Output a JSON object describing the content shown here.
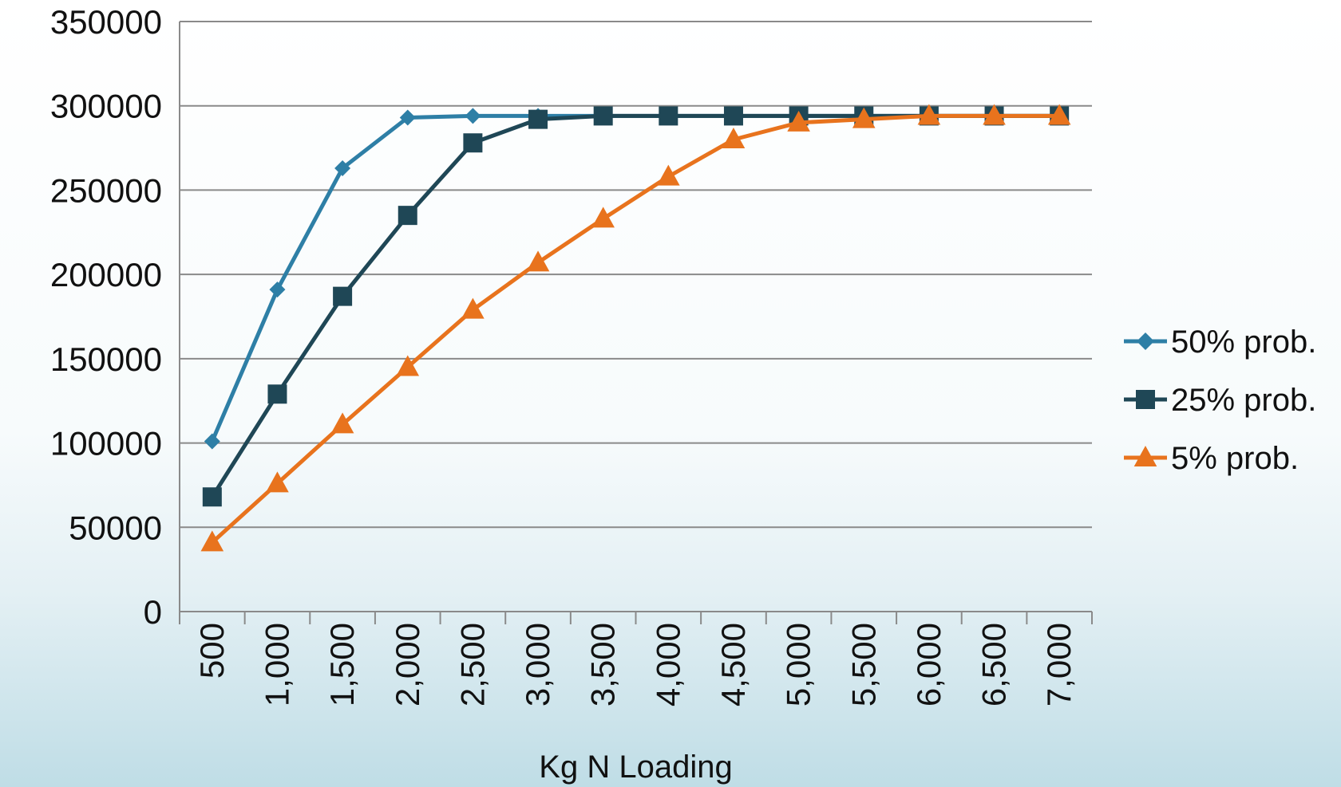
{
  "chart_data": {
    "type": "line",
    "title": "",
    "xlabel": "Kg N Loading",
    "ylabel": "",
    "categories": [
      "500",
      "1,000",
      "1,500",
      "2,000",
      "2,500",
      "3,000",
      "3,500",
      "4,000",
      "4,500",
      "5,000",
      "5,500",
      "6,000",
      "6,500",
      "7,000"
    ],
    "ylim": [
      0,
      350000
    ],
    "yticks": [
      "0",
      "50000",
      "100000",
      "150000",
      "200000",
      "250000",
      "300000",
      "350000"
    ],
    "grid": true,
    "legend_position": "right",
    "series": [
      {
        "name": "50% prob.",
        "marker": "diamond",
        "color": "#2e7fa6",
        "values": [
          101000,
          191000,
          263000,
          293000,
          294000,
          294000,
          294000,
          294000,
          294000,
          294000,
          294000,
          294000,
          294000,
          294000
        ]
      },
      {
        "name": "25% prob.",
        "marker": "square",
        "color": "#1f4756",
        "values": [
          68000,
          129000,
          187000,
          235000,
          278000,
          292000,
          294000,
          294000,
          294000,
          294000,
          294000,
          294000,
          294000,
          294000
        ]
      },
      {
        "name": "5% prob.",
        "marker": "triangle",
        "color": "#e8731d",
        "values": [
          41000,
          76000,
          111000,
          145000,
          179000,
          207000,
          233000,
          258000,
          280000,
          290000,
          292000,
          294000,
          294000,
          294000
        ]
      }
    ]
  }
}
